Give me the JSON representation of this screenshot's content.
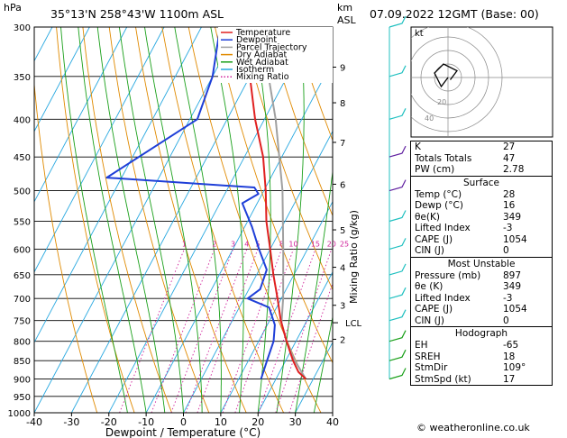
{
  "header": {
    "location": "35°13'N  258°43'W  1100m  ASL",
    "datetime": "07.09.2022  12GMT  (Base: 00)"
  },
  "footer": {
    "credit": "© weatheronline.co.uk"
  },
  "colors": {
    "temperature": "#e02020",
    "dewpoint": "#1f3fd8",
    "parcel": "#a0a0a0",
    "dry_adiabat": "#e08a00",
    "wet_adiabat": "#1aa01a",
    "isotherm": "#28a8e0",
    "mixing_ratio": "#d0209a",
    "wind_barbs": "#20c0c0"
  },
  "indices": {
    "k_label": "K",
    "k_value": "27",
    "tt_label": "Totals Totals",
    "tt_value": "47",
    "pw_label": "PW (cm)",
    "pw_value": "2.78",
    "surface_title": "Surface",
    "s_temp_label": "Temp (°C)",
    "s_temp_value": "28",
    "s_dewp_label": "Dewp (°C)",
    "s_dewp_value": "16",
    "s_thetae_label": "θe(K)",
    "s_thetae_value": "349",
    "s_li_label": "Lifted Index",
    "s_li_value": "-3",
    "s_cape_label": "CAPE (J)",
    "s_cape_value": "1054",
    "s_cin_label": "CIN (J)",
    "s_cin_value": "0",
    "mu_title": "Most Unstable",
    "mu_p_label": "Pressure (mb)",
    "mu_p_value": "897",
    "mu_thetae_label": "θe (K)",
    "mu_thetae_value": "349",
    "mu_li_label": "Lifted Index",
    "mu_li_value": "-3",
    "mu_cape_label": "CAPE (J)",
    "mu_cape_value": "1054",
    "mu_cin_label": "CIN (J)",
    "mu_cin_value": "0",
    "hodo_title": "Hodograph",
    "eh_label": "EH",
    "eh_value": "-65",
    "sreh_label": "SREH",
    "sreh_value": "18",
    "stmdir_label": "StmDir",
    "stmdir_value": "109°",
    "stmspd_label": "StmSpd (kt)",
    "stmspd_value": "17"
  },
  "chart_data": {
    "type": "skew-t",
    "title": "35°13'N  258°43'W  1100m  ASL",
    "xlabel": "Dewpoint / Temperature (°C)",
    "ylabel_left": "hPa",
    "ylabel_right_top": "km",
    "ylabel_right_sub": "ASL",
    "mixing_axis_label": "Mixing Ratio (g/kg)",
    "xlim": [
      -40,
      40
    ],
    "x_ticks": [
      -40,
      -30,
      -20,
      -10,
      0,
      10,
      20,
      30,
      40
    ],
    "pressure_levels": [
      300,
      350,
      400,
      450,
      500,
      550,
      600,
      650,
      700,
      750,
      800,
      850,
      900,
      950,
      1000
    ],
    "km_ticks": [
      {
        "label": "9",
        "p": 340
      },
      {
        "label": "8",
        "p": 380
      },
      {
        "label": "7",
        "p": 430
      },
      {
        "label": "6",
        "p": 490
      },
      {
        "label": "5",
        "p": 565
      },
      {
        "label": "4",
        "p": 635
      },
      {
        "label": "3",
        "p": 715
      },
      {
        "label": "2",
        "p": 795
      }
    ],
    "lcl": {
      "label": "LCL",
      "p": 755
    },
    "mixing_ratio_labels": [
      "1",
      "2",
      "3",
      "4",
      "5",
      "8",
      "10",
      "15",
      "20",
      "25"
    ],
    "mixing_ratio_values": [
      1,
      2,
      3,
      4,
      5,
      8,
      10,
      15,
      20,
      25
    ],
    "legend": [
      "Temperature",
      "Dewpoint",
      "Parcel Trajectory",
      "Dry Adiabat",
      "Wet Adiabat",
      "Isotherm",
      "Mixing Ratio"
    ],
    "legend_position": "top-left",
    "temperature": [
      {
        "p": 900,
        "t": 28
      },
      {
        "p": 880,
        "t": 25
      },
      {
        "p": 850,
        "t": 22
      },
      {
        "p": 800,
        "t": 17.5
      },
      {
        "p": 750,
        "t": 13
      },
      {
        "p": 700,
        "t": 9
      },
      {
        "p": 650,
        "t": 4.5
      },
      {
        "p": 600,
        "t": 0
      },
      {
        "p": 550,
        "t": -5
      },
      {
        "p": 500,
        "t": -9.5
      },
      {
        "p": 450,
        "t": -15
      },
      {
        "p": 400,
        "t": -22.5
      },
      {
        "p": 350,
        "t": -30
      },
      {
        "p": 300,
        "t": -38
      }
    ],
    "dewpoint": [
      {
        "p": 900,
        "t": 16
      },
      {
        "p": 850,
        "t": 15
      },
      {
        "p": 800,
        "t": 14
      },
      {
        "p": 760,
        "t": 12
      },
      {
        "p": 720,
        "t": 8
      },
      {
        "p": 700,
        "t": 1
      },
      {
        "p": 680,
        "t": 3
      },
      {
        "p": 640,
        "t": 2
      },
      {
        "p": 600,
        "t": -3
      },
      {
        "p": 560,
        "t": -8
      },
      {
        "p": 520,
        "t": -14
      },
      {
        "p": 505,
        "t": -11
      },
      {
        "p": 495,
        "t": -13
      },
      {
        "p": 480,
        "t": -54
      },
      {
        "p": 400,
        "t": -38
      },
      {
        "p": 350,
        "t": -40
      },
      {
        "p": 300,
        "t": -45
      }
    ],
    "parcel": [
      {
        "p": 900,
        "t": 28
      },
      {
        "p": 850,
        "t": 22.5
      },
      {
        "p": 800,
        "t": 17.5
      },
      {
        "p": 755,
        "t": 13.5
      },
      {
        "p": 700,
        "t": 10.5
      },
      {
        "p": 600,
        "t": 3.5
      },
      {
        "p": 500,
        "t": -5
      },
      {
        "p": 400,
        "t": -17
      },
      {
        "p": 350,
        "t": -25
      },
      {
        "p": 300,
        "t": -34
      }
    ],
    "hodograph": {
      "label": "kt",
      "ring_labels": [
        "40",
        "20"
      ],
      "points": [
        [
          0,
          0
        ],
        [
          -3,
          -4
        ],
        [
          -6,
          2
        ],
        [
          -2,
          6
        ],
        [
          4,
          3
        ],
        [
          1,
          -1
        ]
      ]
    },
    "wind_levels": [
      300,
      350,
      400,
      450,
      500,
      550,
      600,
      650,
      700,
      750,
      800,
      850,
      900
    ]
  }
}
